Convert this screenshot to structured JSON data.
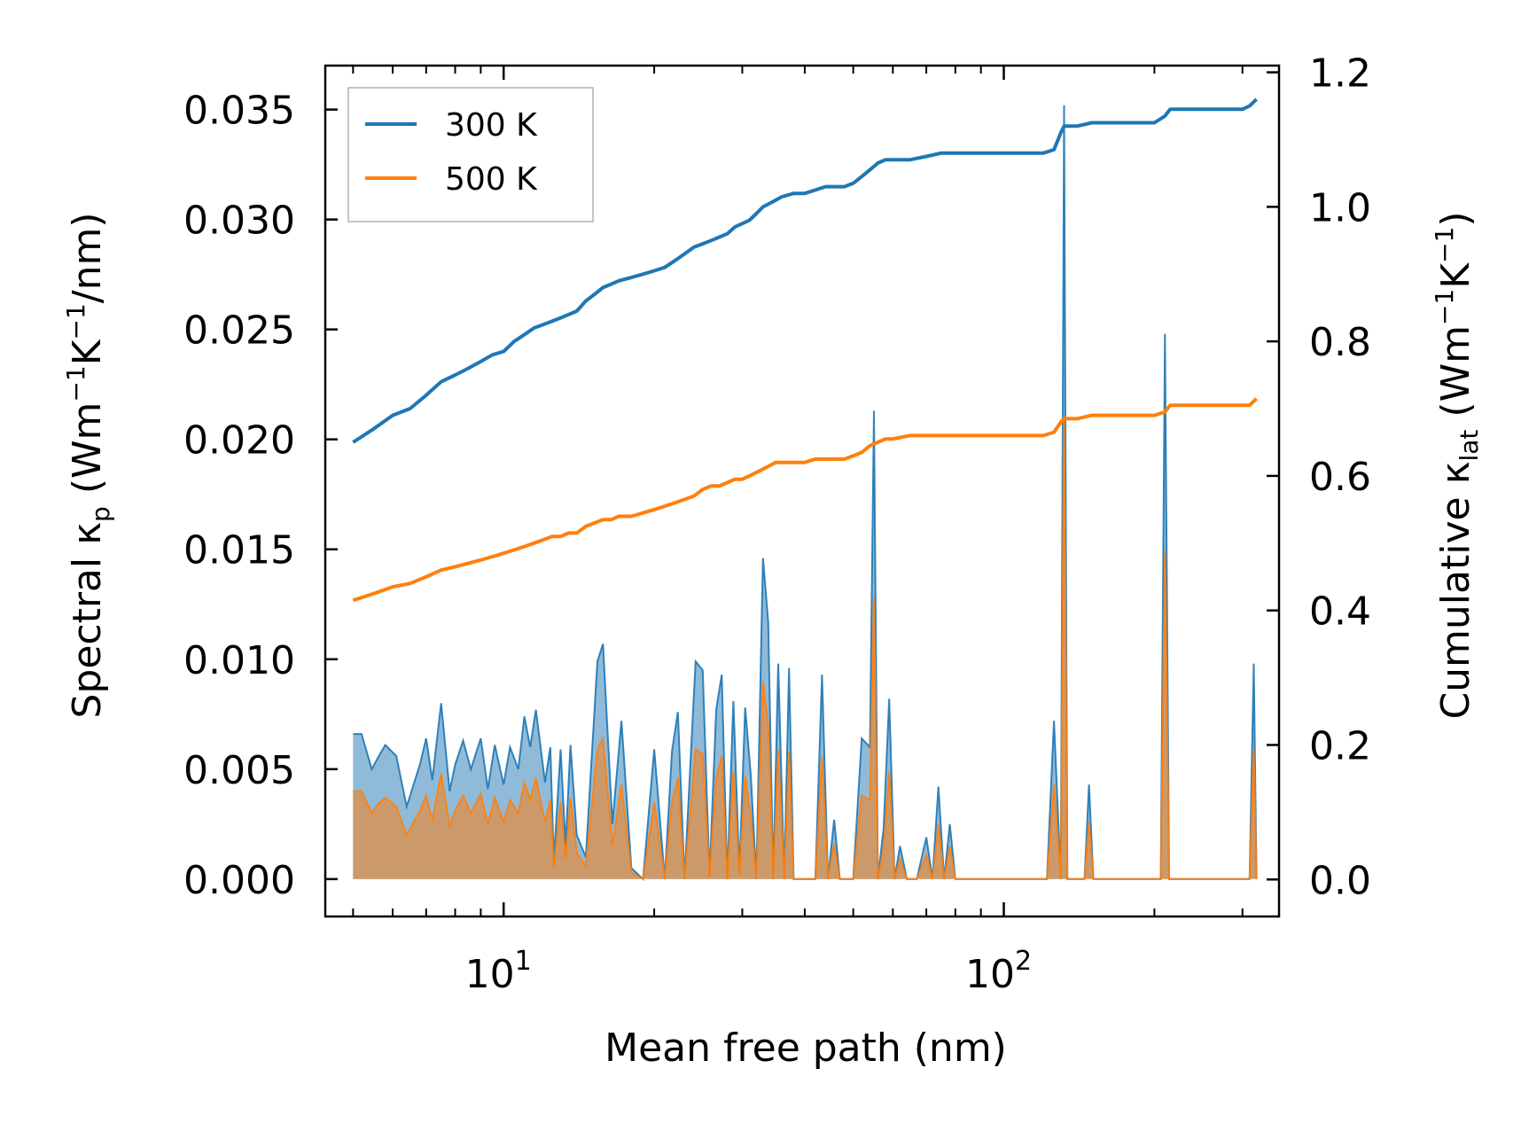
{
  "chart_data": {
    "type": "line",
    "title": "",
    "xlabel": "Mean free path (nm)",
    "xscale": "log",
    "xlim": [
      4.4,
      355
    ],
    "y_left": {
      "label_main": "Spectral κ",
      "label_sub": "p",
      "label_unit_open": " (Wm",
      "label_exp1": "−1",
      "label_mid": "K",
      "label_exp2": "−1",
      "label_unit_close": "/nm)",
      "ylim": [
        -0.0017,
        0.037
      ],
      "ticks": [
        {
          "value": 0.0,
          "label": "0.000"
        },
        {
          "value": 0.005,
          "label": "0.005"
        },
        {
          "value": 0.01,
          "label": "0.010"
        },
        {
          "value": 0.015,
          "label": "0.015"
        },
        {
          "value": 0.02,
          "label": "0.020"
        },
        {
          "value": 0.025,
          "label": "0.025"
        },
        {
          "value": 0.03,
          "label": "0.030"
        },
        {
          "value": 0.035,
          "label": "0.035"
        }
      ]
    },
    "y_right": {
      "label_main": "Cumulative κ",
      "label_sub": "lat",
      "label_unit_open": " (Wm",
      "label_exp1": "−1",
      "label_mid": "K",
      "label_exp2": "−1",
      "label_unit_close": ")",
      "ylim": [
        -0.055,
        1.21
      ],
      "ticks": [
        {
          "value": 0.0,
          "label": "0.0"
        },
        {
          "value": 0.2,
          "label": "0.2"
        },
        {
          "value": 0.4,
          "label": "0.4"
        },
        {
          "value": 0.6,
          "label": "0.6"
        },
        {
          "value": 0.8,
          "label": "0.8"
        },
        {
          "value": 1.0,
          "label": "1.0"
        },
        {
          "value": 1.2,
          "label": "1.2"
        }
      ]
    },
    "x_ticks": [
      {
        "value": 10,
        "base": "10",
        "exp": "1"
      },
      {
        "value": 100,
        "base": "10",
        "exp": "2"
      }
    ],
    "legend": {
      "position": "upper left",
      "entries": [
        {
          "label": "300 K",
          "color": "#1f77b4"
        },
        {
          "label": "500 K",
          "color": "#ff7f0e"
        }
      ]
    },
    "series": [
      {
        "name": "300 K",
        "color": "#1f77b4",
        "spectral": {
          "x": [
            5.0,
            5.2,
            5.45,
            5.6,
            5.8,
            6.1,
            6.4,
            6.8,
            7.0,
            7.2,
            7.5,
            7.8,
            8.0,
            8.3,
            8.6,
            9.0,
            9.3,
            9.6,
            10.0,
            10.3,
            10.7,
            11.0,
            11.3,
            11.6,
            12.1,
            12.4,
            12.6,
            13.0,
            13.3,
            13.6,
            14.0,
            14.6,
            15.4,
            15.8,
            16.5,
            17.2,
            18.0,
            19.0,
            20.0,
            21.0,
            21.7,
            22.3,
            23.0,
            24.2,
            25.0,
            25.8,
            26.6,
            27.3,
            28.0,
            28.8,
            29.6,
            30.4,
            31.2,
            32.0,
            33.0,
            33.8,
            34.6,
            35.4,
            36.4,
            37.2,
            38.0,
            40.0,
            42.0,
            43.3,
            44.5,
            45.8,
            47.0,
            50.0,
            52.0,
            54.0,
            55.0,
            56.0,
            57.5,
            59.0,
            60.5,
            62.0,
            64.0,
            67.0,
            70.0,
            72.0,
            74.0,
            76.0,
            78.0,
            80.0,
            82.0,
            122.0,
            126.0,
            130.0,
            132.0,
            134.0,
            136.0,
            145.0,
            148.0,
            151.0,
            200.0,
            206.0,
            210.0,
            214.0,
            218.0,
            310.0,
            316.0,
            320.0
          ],
          "y": [
            0.0066,
            0.0066,
            0.005,
            0.0055,
            0.0061,
            0.0056,
            0.0033,
            0.0052,
            0.0064,
            0.0045,
            0.008,
            0.004,
            0.0052,
            0.0063,
            0.005,
            0.0064,
            0.0041,
            0.0061,
            0.0043,
            0.006,
            0.005,
            0.0074,
            0.006,
            0.0077,
            0.0044,
            0.006,
            0.0008,
            0.0059,
            0.0015,
            0.0061,
            0.002,
            0.001,
            0.0099,
            0.0107,
            0.0025,
            0.0072,
            0.0005,
            0.0,
            0.0059,
            0.0,
            0.0058,
            0.0076,
            0.0,
            0.0099,
            0.0095,
            0.0001,
            0.0077,
            0.0093,
            0.0,
            0.0081,
            0.0003,
            0.0078,
            0.0047,
            0.0,
            0.0146,
            0.0117,
            0.0,
            0.0098,
            0.0,
            0.0096,
            0.0,
            0.0,
            0.0,
            0.0093,
            0.0,
            0.0027,
            0.0,
            0.0,
            0.0064,
            0.006,
            0.0213,
            0.0,
            0.0023,
            0.0082,
            0.0,
            0.0015,
            0.0,
            0.0,
            0.0019,
            0.0,
            0.0042,
            0.0,
            0.0025,
            0.0,
            0.0,
            0.0,
            0.0072,
            0.0,
            0.0352,
            0.0,
            0.0,
            0.0,
            0.0043,
            0.0,
            0.0,
            0.0,
            0.0248,
            0.0,
            0.0,
            0.0,
            0.0098,
            0.0
          ]
        },
        "cumulative": {
          "x": [
            5.0,
            5.5,
            6.0,
            6.5,
            7.0,
            7.5,
            8.0,
            8.5,
            9.0,
            9.5,
            10.0,
            10.5,
            11.0,
            11.5,
            12.0,
            12.5,
            13.0,
            13.5,
            14.0,
            14.6,
            15.2,
            15.8,
            16.4,
            17.0,
            18.0,
            19.0,
            20.0,
            21.0,
            22.0,
            23.0,
            24.0,
            25.0,
            26.0,
            27.0,
            28.0,
            29.0,
            30.0,
            31.0,
            32.0,
            33.0,
            34.0,
            35.0,
            36.0,
            38.0,
            40.0,
            42.0,
            44.0,
            46.0,
            48.0,
            50.0,
            52.0,
            54.0,
            56.0,
            58.0,
            60.0,
            65.0,
            70.0,
            75.0,
            80.0,
            90.0,
            100.0,
            110.0,
            120.0,
            126.0,
            130.0,
            132.0,
            140.0,
            150.0,
            170.0,
            200.0,
            210.0,
            215.0,
            230.0,
            260.0,
            300.0,
            310.0,
            320.0
          ],
          "y": [
            0.65,
            0.67,
            0.69,
            0.7,
            0.72,
            0.74,
            0.75,
            0.76,
            0.77,
            0.78,
            0.785,
            0.8,
            0.81,
            0.82,
            0.825,
            0.83,
            0.835,
            0.84,
            0.845,
            0.86,
            0.87,
            0.88,
            0.885,
            0.89,
            0.895,
            0.9,
            0.905,
            0.91,
            0.92,
            0.93,
            0.94,
            0.945,
            0.95,
            0.955,
            0.96,
            0.97,
            0.975,
            0.98,
            0.99,
            1.0,
            1.005,
            1.01,
            1.015,
            1.02,
            1.02,
            1.025,
            1.03,
            1.03,
            1.03,
            1.035,
            1.045,
            1.055,
            1.065,
            1.07,
            1.07,
            1.07,
            1.075,
            1.08,
            1.08,
            1.08,
            1.08,
            1.08,
            1.08,
            1.085,
            1.11,
            1.12,
            1.12,
            1.125,
            1.125,
            1.125,
            1.135,
            1.145,
            1.145,
            1.145,
            1.145,
            1.15,
            1.16
          ]
        }
      },
      {
        "name": "500 K",
        "color": "#ff7f0e",
        "spectral": {
          "x": [
            5.0,
            5.2,
            5.45,
            5.6,
            5.8,
            6.1,
            6.4,
            6.8,
            7.0,
            7.2,
            7.5,
            7.8,
            8.0,
            8.3,
            8.6,
            9.0,
            9.3,
            9.6,
            10.0,
            10.3,
            10.7,
            11.0,
            11.3,
            11.6,
            12.1,
            12.4,
            12.6,
            13.0,
            13.3,
            13.6,
            14.0,
            14.6,
            15.4,
            15.8,
            16.5,
            17.2,
            18.0,
            19.0,
            20.0,
            21.0,
            21.7,
            22.3,
            23.0,
            24.2,
            25.0,
            25.8,
            26.6,
            27.3,
            28.0,
            28.8,
            29.6,
            30.4,
            31.2,
            32.0,
            33.0,
            33.8,
            34.6,
            35.4,
            36.4,
            37.2,
            38.0,
            40.0,
            42.0,
            43.3,
            44.5,
            45.8,
            47.0,
            50.0,
            52.0,
            54.0,
            55.0,
            56.0,
            57.5,
            59.0,
            60.5,
            62.0,
            64.0,
            67.0,
            70.0,
            72.0,
            74.0,
            76.0,
            78.0,
            80.0,
            82.0,
            122.0,
            126.0,
            130.0,
            132.0,
            134.0,
            136.0,
            145.0,
            148.0,
            151.0,
            200.0,
            206.0,
            210.0,
            214.0,
            218.0,
            310.0,
            316.0,
            320.0
          ],
          "y": [
            0.004,
            0.004,
            0.003,
            0.0034,
            0.0037,
            0.0033,
            0.002,
            0.0031,
            0.0038,
            0.0027,
            0.0048,
            0.0024,
            0.0031,
            0.0038,
            0.003,
            0.0039,
            0.0025,
            0.0037,
            0.0026,
            0.0036,
            0.003,
            0.0044,
            0.0036,
            0.0046,
            0.0026,
            0.0036,
            0.0005,
            0.0035,
            0.0009,
            0.0037,
            0.0012,
            0.0006,
            0.0059,
            0.0064,
            0.0015,
            0.0043,
            0.0003,
            0.0,
            0.0035,
            0.0,
            0.0035,
            0.0046,
            0.0,
            0.0059,
            0.0057,
            0.0001,
            0.0046,
            0.0056,
            0.0,
            0.0049,
            0.0002,
            0.0047,
            0.0028,
            0.0,
            0.009,
            0.007,
            0.0,
            0.0059,
            0.0,
            0.0058,
            0.0,
            0.0,
            0.0,
            0.0056,
            0.0,
            0.0016,
            0.0,
            0.0,
            0.0038,
            0.0036,
            0.0128,
            0.0,
            0.0014,
            0.0049,
            0.0,
            0.0009,
            0.0,
            0.0,
            0.0011,
            0.0,
            0.0025,
            0.0,
            0.0015,
            0.0,
            0.0,
            0.0,
            0.0043,
            0.0,
            0.0211,
            0.0,
            0.0,
            0.0,
            0.0026,
            0.0,
            0.0,
            0.0,
            0.0149,
            0.0,
            0.0,
            0.0,
            0.0059,
            0.0
          ]
        },
        "cumulative": {
          "x": [
            5.0,
            5.5,
            6.0,
            6.5,
            7.0,
            7.5,
            8.0,
            8.5,
            9.0,
            9.5,
            10.0,
            10.5,
            11.0,
            11.5,
            12.0,
            12.5,
            13.0,
            13.5,
            14.0,
            14.6,
            15.2,
            15.8,
            16.4,
            17.0,
            18.0,
            19.0,
            20.0,
            21.0,
            22.0,
            23.0,
            24.0,
            25.0,
            26.0,
            27.0,
            28.0,
            29.0,
            30.0,
            31.0,
            32.0,
            33.0,
            34.0,
            35.0,
            36.0,
            38.0,
            40.0,
            42.0,
            44.0,
            46.0,
            48.0,
            50.0,
            52.0,
            54.0,
            56.0,
            58.0,
            60.0,
            65.0,
            70.0,
            75.0,
            80.0,
            90.0,
            100.0,
            110.0,
            120.0,
            126.0,
            130.0,
            132.0,
            140.0,
            150.0,
            170.0,
            200.0,
            210.0,
            215.0,
            230.0,
            260.0,
            300.0,
            310.0,
            320.0
          ],
          "y": [
            0.415,
            0.425,
            0.435,
            0.44,
            0.45,
            0.46,
            0.465,
            0.47,
            0.475,
            0.48,
            0.485,
            0.49,
            0.495,
            0.5,
            0.505,
            0.51,
            0.51,
            0.515,
            0.515,
            0.525,
            0.53,
            0.535,
            0.535,
            0.54,
            0.54,
            0.545,
            0.55,
            0.555,
            0.56,
            0.565,
            0.57,
            0.58,
            0.585,
            0.585,
            0.59,
            0.595,
            0.595,
            0.6,
            0.605,
            0.61,
            0.615,
            0.62,
            0.62,
            0.62,
            0.62,
            0.625,
            0.625,
            0.625,
            0.625,
            0.63,
            0.635,
            0.645,
            0.65,
            0.655,
            0.655,
            0.66,
            0.66,
            0.66,
            0.66,
            0.66,
            0.66,
            0.66,
            0.66,
            0.665,
            0.68,
            0.685,
            0.685,
            0.69,
            0.69,
            0.69,
            0.695,
            0.705,
            0.705,
            0.705,
            0.705,
            0.705,
            0.715
          ]
        }
      }
    ]
  }
}
